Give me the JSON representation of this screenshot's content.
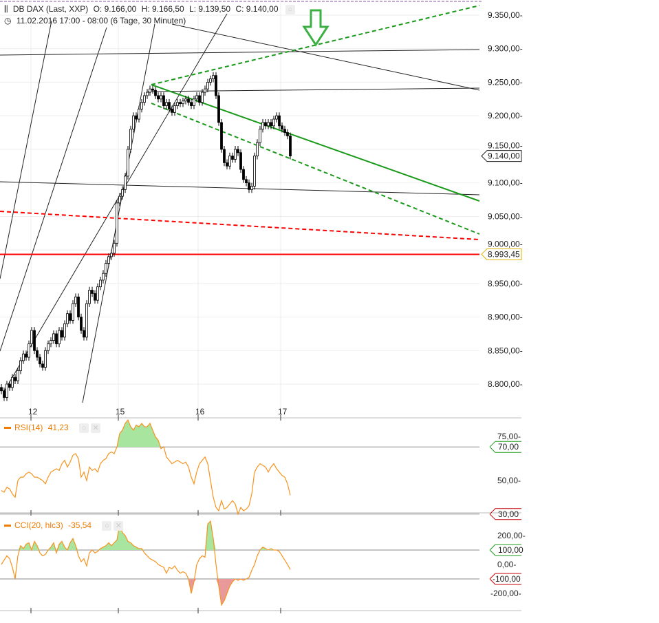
{
  "header": {
    "instrument": "DB DAX (Last, XXP)",
    "open": "O: 9.166,00",
    "high": "H: 9.166,50",
    "low": "L: 9.139,50",
    "close": "C: 9.140,00",
    "period": "11.02.2016 17:00 - 08:00 (6 Tage, 30 Minuten)"
  },
  "colors": {
    "up": "#ffffff",
    "down": "#000000",
    "rsi": "#f7931e",
    "overbought_fill": "#a8e6a0",
    "oversold_fill": "#e89a9a",
    "trend_green": "#1a9a1a",
    "trend_red": "#ff0000",
    "arrow": "#3cb043"
  },
  "chart_data": [
    {
      "type": "candlestick",
      "title": "DB DAX (Last, XXP)",
      "interval": "30 Minuten",
      "x_ticks": [
        "12",
        "15",
        "16",
        "17"
      ],
      "y_ticks": [
        "9.350,00",
        "9.300,00",
        "9.250,00",
        "9.200,00",
        "9.150,00",
        "9.100,00",
        "9.050,00",
        "9.000,00",
        "8.950,00",
        "8.900,00",
        "8.850,00",
        "8.800,00"
      ],
      "ylim": [
        8755,
        9375
      ],
      "grid": true,
      "last_price_label": "9.140,00",
      "horizontal_line_label": "8.993,45",
      "horizontal_line_value": 8993.45,
      "close": [
        8790,
        8780,
        8800,
        8795,
        8810,
        8805,
        8820,
        8835,
        8845,
        8840,
        8860,
        8880,
        8850,
        8840,
        8830,
        8825,
        8850,
        8860,
        8865,
        8875,
        8860,
        8880,
        8870,
        8890,
        8905,
        8895,
        8920,
        8930,
        8900,
        8880,
        8870,
        8920,
        8940,
        8935,
        8925,
        8945,
        8955,
        8965,
        8980,
        8990,
        8995,
        9010,
        9070,
        9080,
        9090,
        9110,
        9150,
        9180,
        9200,
        9195,
        9210,
        9220,
        9230,
        9235,
        9240,
        9238,
        9230,
        9225,
        9230,
        9215,
        9220,
        9210,
        9205,
        9215,
        9220,
        9218,
        9222,
        9225,
        9220,
        9215,
        9225,
        9230,
        9220,
        9235,
        9240,
        9250,
        9255,
        9260,
        9230,
        9190,
        9150,
        9130,
        9125,
        9140,
        9135,
        9150,
        9145,
        9120,
        9105,
        9100,
        9090,
        9095,
        9140,
        9160,
        9180,
        9190,
        9185,
        9190,
        9185,
        9195,
        9200,
        9185,
        9180,
        9175,
        9170,
        9140
      ]
    },
    {
      "type": "line",
      "title": "RSI(14)",
      "value_label": "41,23",
      "y_ticks": [
        "75,00",
        "50,00"
      ],
      "levels": [
        {
          "label": "70,00",
          "value": 70,
          "color": "#1a9a1a"
        },
        {
          "label": "30,00",
          "value": 30,
          "color": "#c00000"
        }
      ],
      "values": [
        44,
        43,
        46,
        45,
        42,
        40,
        50,
        52,
        52,
        54,
        55,
        54,
        52,
        52,
        51,
        50,
        48,
        52,
        55,
        56,
        57,
        56,
        60,
        62,
        58,
        61,
        65,
        66,
        63,
        52,
        55,
        50,
        58,
        56,
        57,
        55,
        60,
        62,
        63,
        66,
        67,
        66,
        70,
        78,
        80,
        84,
        86,
        82,
        80,
        83,
        82,
        84,
        82,
        82,
        84,
        80,
        76,
        74,
        69,
        70,
        64,
        62,
        60,
        61,
        62,
        61,
        60,
        61,
        58,
        52,
        48,
        55,
        60,
        62,
        64,
        60,
        50,
        40,
        34,
        32,
        38,
        33,
        34,
        36,
        38,
        36,
        30,
        34,
        32,
        33,
        35,
        42,
        55,
        58,
        60,
        59,
        58,
        55,
        58,
        60,
        57,
        55,
        53,
        52,
        48,
        41.23
      ]
    },
    {
      "type": "line",
      "title": "CCI(20, hlc3)",
      "value_label": "-35,54",
      "y_ticks": [
        "200,00",
        "0,00",
        "-200,00"
      ],
      "levels": [
        {
          "label": "100,00",
          "value": 100,
          "color": "#1a9a1a"
        },
        {
          "label": "-100,00",
          "value": -100,
          "color": "#c00000"
        }
      ],
      "values": [
        0,
        30,
        60,
        40,
        -20,
        -100,
        60,
        130,
        110,
        140,
        150,
        100,
        160,
        130,
        80,
        60,
        70,
        100,
        120,
        150,
        80,
        140,
        160,
        120,
        100,
        150,
        180,
        130,
        60,
        20,
        40,
        -10,
        80,
        100,
        80,
        90,
        110,
        120,
        130,
        150,
        130,
        150,
        170,
        280,
        220,
        200,
        160,
        150,
        130,
        120,
        110,
        110,
        80,
        60,
        40,
        30,
        20,
        0,
        -10,
        -20,
        -60,
        -20,
        -30,
        -10,
        -40,
        -60,
        -50,
        -60,
        -100,
        -200,
        -120,
        0,
        40,
        60,
        50,
        280,
        300,
        180,
        0,
        -150,
        -280,
        -250,
        -200,
        -150,
        -120,
        -100,
        -110,
        -100,
        -110,
        -100,
        -90,
        -40,
        0,
        60,
        100,
        120,
        110,
        100,
        110,
        100,
        100,
        90,
        60,
        30,
        0,
        -35.54
      ]
    }
  ]
}
